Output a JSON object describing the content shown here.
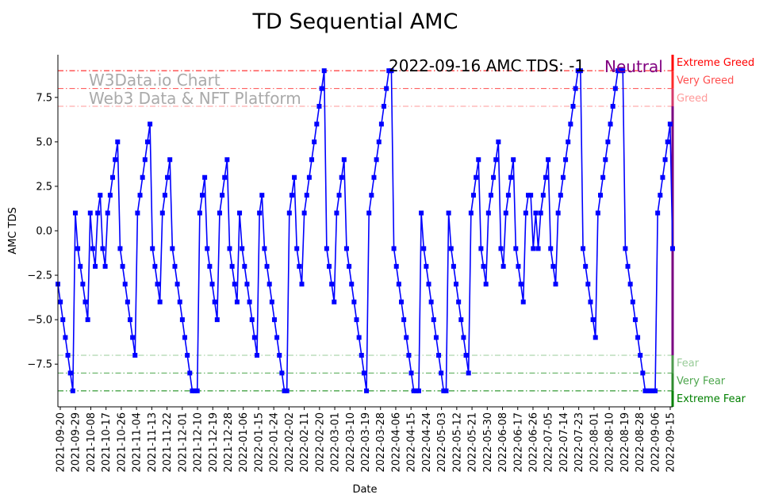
{
  "chart_data": {
    "type": "line",
    "title": "TD Sequential AMC",
    "xlabel": "Date",
    "ylabel": "AMC TDS",
    "ylim": [
      -9.9,
      9.9
    ],
    "yticks": [
      -7.5,
      -5.0,
      -2.5,
      0.0,
      2.5,
      5.0,
      7.5
    ],
    "ytick_labels": [
      "−7.5",
      "−5.0",
      "−2.5",
      "0.0",
      "2.5",
      "5.0",
      "7.5"
    ],
    "xticks": [
      "2021-09-20",
      "2021-09-29",
      "2021-10-08",
      "2021-10-17",
      "2021-10-26",
      "2021-11-04",
      "2021-11-13",
      "2021-11-22",
      "2021-12-01",
      "2021-12-10",
      "2021-12-19",
      "2021-12-28",
      "2022-01-06",
      "2022-01-15",
      "2022-01-24",
      "2022-02-02",
      "2022-02-11",
      "2022-02-20",
      "2022-03-01",
      "2022-03-10",
      "2022-03-19",
      "2022-03-28",
      "2022-04-06",
      "2022-04-15",
      "2022-04-24",
      "2022-05-03",
      "2022-05-12",
      "2022-05-21",
      "2022-05-30",
      "2022-06-08",
      "2022-06-17",
      "2022-06-26",
      "2022-07-05",
      "2022-07-14",
      "2022-07-23",
      "2022-08-01",
      "2022-08-10",
      "2022-08-19",
      "2022-08-28",
      "2022-09-06",
      "2022-09-15"
    ],
    "series": [
      {
        "name": "AMC TDS",
        "color": "#0000ff",
        "values": [
          -3,
          -4,
          -5,
          -6,
          -7,
          -8,
          -9,
          1,
          -1,
          -2,
          -3,
          -4,
          -5,
          1,
          -1,
          -2,
          1,
          2,
          -1,
          -2,
          1,
          2,
          3,
          4,
          5,
          -1,
          -2,
          -3,
          -4,
          -5,
          -6,
          -7,
          1,
          2,
          3,
          4,
          5,
          6,
          -1,
          -2,
          -3,
          -4,
          1,
          2,
          3,
          4,
          -1,
          -2,
          -3,
          -4,
          -5,
          -6,
          -7,
          -8,
          -9,
          -9,
          -9,
          1,
          2,
          3,
          -1,
          -2,
          -3,
          -4,
          -5,
          1,
          2,
          3,
          4,
          -1,
          -2,
          -3,
          -4,
          1,
          -1,
          -2,
          -3,
          -4,
          -5,
          -6,
          -7,
          1,
          2,
          -1,
          -2,
          -3,
          -4,
          -5,
          -6,
          -7,
          -8,
          -9,
          -9,
          1,
          2,
          3,
          -1,
          -2,
          -3,
          1,
          2,
          3,
          4,
          5,
          6,
          7,
          8,
          9,
          -1,
          -2,
          -3,
          -4,
          1,
          2,
          3,
          4,
          -1,
          -2,
          -3,
          -4,
          -5,
          -6,
          -7,
          -8,
          -9,
          1,
          2,
          3,
          4,
          5,
          6,
          7,
          8,
          9,
          9,
          -1,
          -2,
          -3,
          -4,
          -5,
          -6,
          -7,
          -8,
          -9,
          -9,
          -9,
          1,
          -1,
          -2,
          -3,
          -4,
          -5,
          -6,
          -7,
          -8,
          -9,
          -9,
          1,
          -1,
          -2,
          -3,
          -4,
          -5,
          -6,
          -7,
          -8,
          1,
          2,
          3,
          4,
          -1,
          -2,
          -3,
          1,
          2,
          3,
          4,
          5,
          -1,
          -2,
          1,
          2,
          3,
          4,
          -1,
          -2,
          -3,
          -4,
          1,
          2,
          2,
          -1,
          1,
          -1,
          1,
          2,
          3,
          4,
          -1,
          -2,
          -3,
          1,
          2,
          3,
          4,
          5,
          6,
          7,
          8,
          9,
          9,
          -1,
          -2,
          -3,
          -4,
          -5,
          -6,
          1,
          2,
          3,
          4,
          5,
          6,
          7,
          8,
          9,
          9,
          9,
          -1,
          -2,
          -3,
          -4,
          -5,
          -6,
          -7,
          -8,
          -9,
          -9,
          -9,
          -9,
          -9,
          1,
          2,
          3,
          4,
          5,
          6,
          -1
        ]
      }
    ],
    "levels": [
      {
        "value": 9,
        "label": "Extreme Greed",
        "color": "#ff0000"
      },
      {
        "value": 8,
        "label": "Very Greed",
        "color": "#ff4d4d"
      },
      {
        "value": 7,
        "label": "Greed",
        "color": "#ff9999"
      },
      {
        "value": -7,
        "label": "Fear",
        "color": "#99cc99"
      },
      {
        "value": -8,
        "label": "Very Fear",
        "color": "#4da64d"
      },
      {
        "value": -9,
        "label": "Extreme Fear",
        "color": "#008000"
      }
    ],
    "annotation": {
      "date_text": "2022-09-16 AMC TDS: -1",
      "sentiment": "Neutral",
      "sentiment_color": "#800080"
    },
    "watermark": [
      "W3Data.io Chart",
      "Web3 Data & NFT Platform"
    ],
    "grid": false
  }
}
